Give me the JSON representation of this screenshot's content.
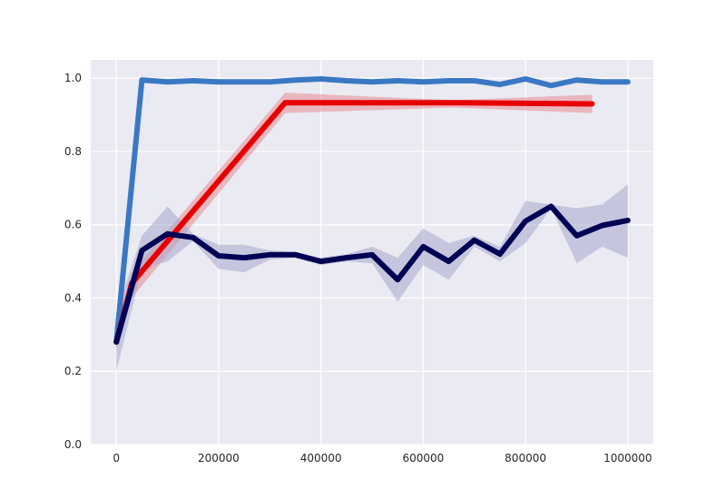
{
  "chart_data": {
    "type": "line",
    "title": "",
    "xlabel": "",
    "ylabel": "",
    "xlim": [
      -50000,
      1050000
    ],
    "ylim": [
      0.0,
      1.05
    ],
    "grid": true,
    "legend": "none",
    "background_color": "#EAEAF2",
    "grid_color": "#FFFFFF",
    "xticks": [
      0,
      200000,
      400000,
      600000,
      800000,
      1000000
    ],
    "xtick_labels": [
      "0",
      "200000",
      "400000",
      "600000",
      "800000",
      "1000000"
    ],
    "yticks": [
      0.0,
      0.2,
      0.4,
      0.6,
      0.8,
      1.0
    ],
    "ytick_labels": [
      "0.0",
      "0.2",
      "0.4",
      "0.6",
      "0.8",
      "1.0"
    ],
    "series": [
      {
        "color": "#3B78C3",
        "band_color": "#3B78C3",
        "x": [
          0,
          50000,
          100000,
          150000,
          200000,
          250000,
          300000,
          350000,
          400000,
          450000,
          500000,
          550000,
          600000,
          650000,
          700000,
          750000,
          800000,
          850000,
          900000,
          950000,
          1000000
        ],
        "y": [
          0.28,
          0.995,
          0.99,
          0.993,
          0.99,
          0.99,
          0.99,
          0.995,
          0.998,
          0.993,
          0.99,
          0.993,
          0.99,
          0.993,
          0.993,
          0.983,
          0.998,
          0.98,
          0.995,
          0.99,
          0.99
        ],
        "lower": [
          0.27,
          0.99,
          0.987,
          0.99,
          0.987,
          0.987,
          0.987,
          0.992,
          0.995,
          0.99,
          0.987,
          0.99,
          0.987,
          0.99,
          0.99,
          0.979,
          0.995,
          0.976,
          0.992,
          0.987,
          0.987
        ],
        "upper": [
          0.29,
          0.999,
          0.993,
          0.996,
          0.993,
          0.993,
          0.993,
          0.998,
          1.0,
          0.996,
          0.993,
          0.996,
          0.993,
          0.996,
          0.996,
          0.987,
          1.0,
          0.984,
          0.998,
          0.993,
          0.993
        ]
      },
      {
        "color": "#E60000",
        "band_color": "#E88B92",
        "x": [
          0,
          30000,
          330000,
          660000,
          930000
        ],
        "y": [
          0.28,
          0.44,
          0.933,
          0.933,
          0.93
        ],
        "lower": [
          0.26,
          0.4,
          0.905,
          0.92,
          0.905
        ],
        "upper": [
          0.3,
          0.47,
          0.96,
          0.94,
          0.955
        ]
      },
      {
        "color": "#000055",
        "band_color": "#A6A8CC",
        "x": [
          0,
          50000,
          100000,
          150000,
          200000,
          250000,
          300000,
          350000,
          400000,
          450000,
          500000,
          550000,
          600000,
          650000,
          700000,
          750000,
          800000,
          850000,
          900000,
          950000,
          1000000
        ],
        "y": [
          0.28,
          0.53,
          0.575,
          0.565,
          0.515,
          0.51,
          0.518,
          0.518,
          0.5,
          0.51,
          0.518,
          0.45,
          0.54,
          0.5,
          0.558,
          0.52,
          0.61,
          0.65,
          0.57,
          0.598,
          0.612
        ],
        "lower": [
          0.2,
          0.48,
          0.5,
          0.555,
          0.48,
          0.47,
          0.505,
          0.51,
          0.49,
          0.5,
          0.495,
          0.39,
          0.49,
          0.45,
          0.54,
          0.5,
          0.55,
          0.645,
          0.495,
          0.54,
          0.51
        ],
        "upper": [
          0.36,
          0.57,
          0.65,
          0.575,
          0.545,
          0.545,
          0.53,
          0.525,
          0.51,
          0.52,
          0.54,
          0.51,
          0.59,
          0.55,
          0.57,
          0.54,
          0.665,
          0.655,
          0.645,
          0.655,
          0.71
        ]
      }
    ]
  }
}
